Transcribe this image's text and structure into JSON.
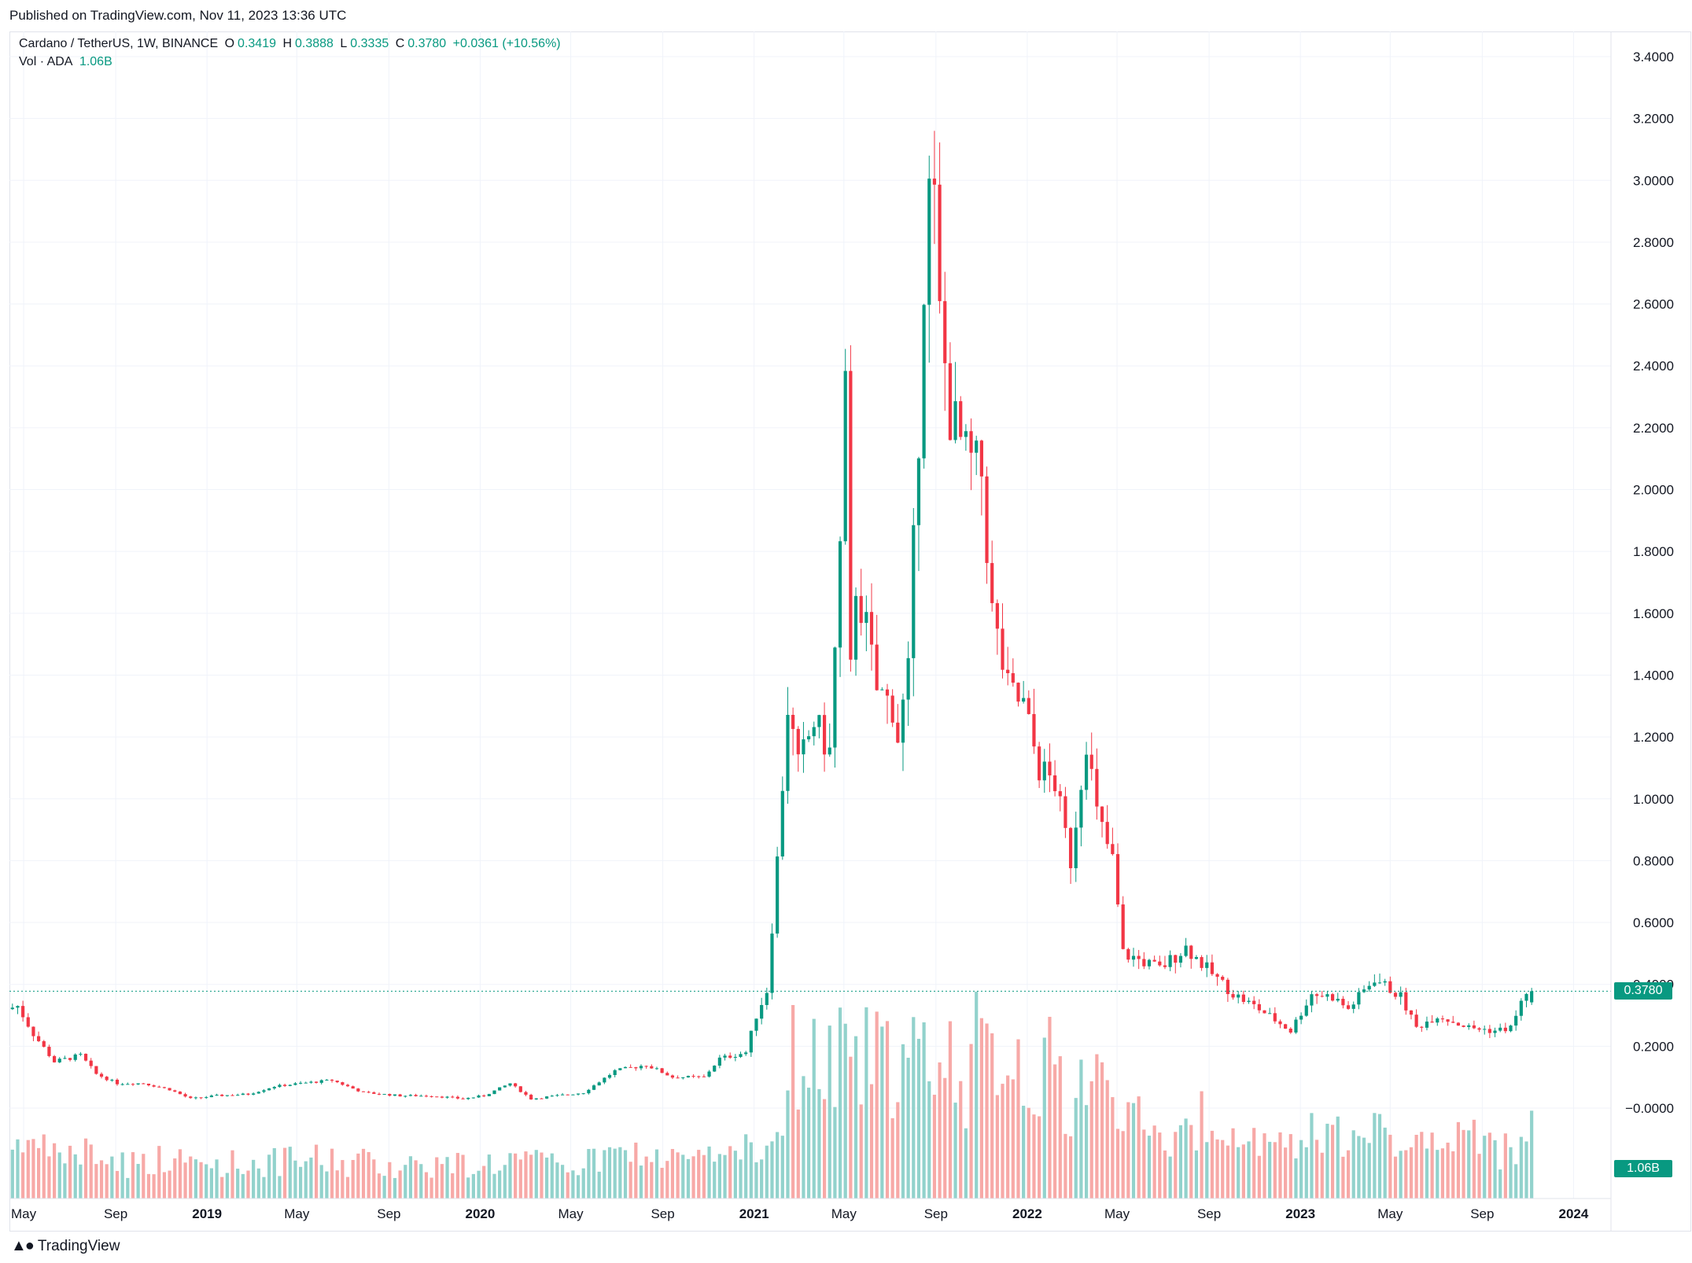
{
  "header": {
    "published": "Published on TradingView.com, Nov 11, 2023 13:36 UTC"
  },
  "legend": {
    "symbol": "Cardano / TetherUS, 1W, BINANCE",
    "o_label": "O",
    "o_value": "0.3419",
    "h_label": "H",
    "h_value": "0.3888",
    "l_label": "L",
    "l_value": "0.3335",
    "c_label": "C",
    "c_value": "0.3780",
    "change": "+0.0361 (+10.56%)",
    "vol_label": "Vol · ADA",
    "vol_value": "1.06B"
  },
  "tags": {
    "last_price": "0.3780",
    "last_volume": "1.06B"
  },
  "footer": {
    "brand": "TradingView"
  },
  "colors": {
    "up": "#089981",
    "down": "#f23645",
    "vol_up": "#92d2cc",
    "vol_down": "#f7a9a7",
    "grid": "#f0f3fa",
    "axis_text": "#131722"
  },
  "chart_data": {
    "type": "candlestick",
    "y_axis": {
      "ticks": [
        "3.4000",
        "3.2000",
        "3.0000",
        "2.8000",
        "2.6000",
        "2.4000",
        "2.2000",
        "2.0000",
        "1.8000",
        "1.6000",
        "1.4000",
        "1.2000",
        "1.0000",
        "0.8000",
        "0.6000",
        "0.4000",
        "0.2000",
        "−0.0000"
      ],
      "min": 0,
      "max": 3.4
    },
    "x_axis": {
      "ticks": [
        {
          "label": "May",
          "bold": false,
          "date": "2018-05"
        },
        {
          "label": "Sep",
          "bold": false,
          "date": "2018-09"
        },
        {
          "label": "2019",
          "bold": true,
          "date": "2019-01"
        },
        {
          "label": "May",
          "bold": false,
          "date": "2019-05"
        },
        {
          "label": "Sep",
          "bold": false,
          "date": "2019-09"
        },
        {
          "label": "2020",
          "bold": true,
          "date": "2020-01"
        },
        {
          "label": "May",
          "bold": false,
          "date": "2020-05"
        },
        {
          "label": "Sep",
          "bold": false,
          "date": "2020-09"
        },
        {
          "label": "2021",
          "bold": true,
          "date": "2021-01"
        },
        {
          "label": "May",
          "bold": false,
          "date": "2021-05"
        },
        {
          "label": "Sep",
          "bold": false,
          "date": "2021-09"
        },
        {
          "label": "2022",
          "bold": true,
          "date": "2022-01"
        },
        {
          "label": "May",
          "bold": false,
          "date": "2022-05"
        },
        {
          "label": "Sep",
          "bold": false,
          "date": "2022-09"
        },
        {
          "label": "2023",
          "bold": true,
          "date": "2023-01"
        },
        {
          "label": "May",
          "bold": false,
          "date": "2023-05"
        },
        {
          "label": "Sep",
          "bold": false,
          "date": "2023-09"
        },
        {
          "label": "2024",
          "bold": true,
          "date": "2024-01"
        }
      ]
    },
    "price_keyframes": [
      [
        "2018-04-16",
        0.32
      ],
      [
        "2018-04-30",
        0.33
      ],
      [
        "2018-05-21",
        0.24
      ],
      [
        "2018-06-18",
        0.15
      ],
      [
        "2018-07-23",
        0.17
      ],
      [
        "2018-08-13",
        0.11
      ],
      [
        "2018-09-10",
        0.08
      ],
      [
        "2018-10-15",
        0.08
      ],
      [
        "2018-11-19",
        0.06
      ],
      [
        "2018-12-17",
        0.03
      ],
      [
        "2019-01-21",
        0.04
      ],
      [
        "2019-03-04",
        0.045
      ],
      [
        "2019-04-08",
        0.07
      ],
      [
        "2019-05-13",
        0.08
      ],
      [
        "2019-06-24",
        0.09
      ],
      [
        "2019-08-05",
        0.05
      ],
      [
        "2019-09-23",
        0.04
      ],
      [
        "2019-11-04",
        0.04
      ],
      [
        "2019-12-16",
        0.03
      ],
      [
        "2020-01-13",
        0.04
      ],
      [
        "2020-02-17",
        0.08
      ],
      [
        "2020-03-16",
        0.03
      ],
      [
        "2020-04-20",
        0.04
      ],
      [
        "2020-05-25",
        0.05
      ],
      [
        "2020-07-06",
        0.12
      ],
      [
        "2020-08-17",
        0.14
      ],
      [
        "2020-09-21",
        0.1
      ],
      [
        "2020-11-02",
        0.1
      ],
      [
        "2020-11-23",
        0.16
      ],
      [
        "2020-12-28",
        0.18
      ],
      [
        "2021-01-11",
        0.3
      ],
      [
        "2021-01-25",
        0.38
      ],
      [
        "2021-02-08",
        0.8
      ],
      [
        "2021-02-22",
        1.3
      ],
      [
        "2021-03-08",
        1.1
      ],
      [
        "2021-03-29",
        1.25
      ],
      [
        "2021-04-19",
        1.15
      ],
      [
        "2021-05-03",
        1.8
      ],
      [
        "2021-05-10",
        2.3
      ],
      [
        "2021-05-17",
        1.4
      ],
      [
        "2021-05-24",
        1.7
      ],
      [
        "2021-06-07",
        1.55
      ],
      [
        "2021-06-21",
        1.35
      ],
      [
        "2021-07-12",
        1.3
      ],
      [
        "2021-07-19",
        1.2
      ],
      [
        "2021-08-02",
        1.4
      ],
      [
        "2021-08-16",
        2.2
      ],
      [
        "2021-08-23",
        2.7
      ],
      [
        "2021-08-30",
        2.95
      ],
      [
        "2021-09-06",
        2.9
      ],
      [
        "2021-09-13",
        2.55
      ],
      [
        "2021-09-27",
        2.25
      ],
      [
        "2021-10-18",
        2.1
      ],
      [
        "2021-11-08",
        2.05
      ],
      [
        "2021-11-22",
        1.6
      ],
      [
        "2021-12-13",
        1.35
      ],
      [
        "2022-01-03",
        1.3
      ],
      [
        "2022-01-24",
        1.1
      ],
      [
        "2022-02-14",
        1.05
      ],
      [
        "2022-03-07",
        0.8
      ],
      [
        "2022-03-28",
        1.2
      ],
      [
        "2022-04-11",
        0.95
      ],
      [
        "2022-05-02",
        0.8
      ],
      [
        "2022-05-16",
        0.5
      ],
      [
        "2022-06-06",
        0.48
      ],
      [
        "2022-07-04",
        0.45
      ],
      [
        "2022-08-08",
        0.52
      ],
      [
        "2022-09-05",
        0.45
      ],
      [
        "2022-10-10",
        0.37
      ],
      [
        "2022-11-14",
        0.32
      ],
      [
        "2022-12-26",
        0.25
      ],
      [
        "2023-01-23",
        0.37
      ],
      [
        "2023-02-20",
        0.36
      ],
      [
        "2023-03-13",
        0.32
      ],
      [
        "2023-04-17",
        0.42
      ],
      [
        "2023-05-22",
        0.36
      ],
      [
        "2023-06-12",
        0.26
      ],
      [
        "2023-07-10",
        0.3
      ],
      [
        "2023-08-21",
        0.26
      ],
      [
        "2023-09-25",
        0.25
      ],
      [
        "2023-10-16",
        0.26
      ],
      [
        "2023-11-06",
        0.378
      ]
    ],
    "last_candle": {
      "open": 0.3419,
      "high": 0.3888,
      "low": 0.3335,
      "close": 0.378,
      "volume": "1.06B"
    }
  }
}
